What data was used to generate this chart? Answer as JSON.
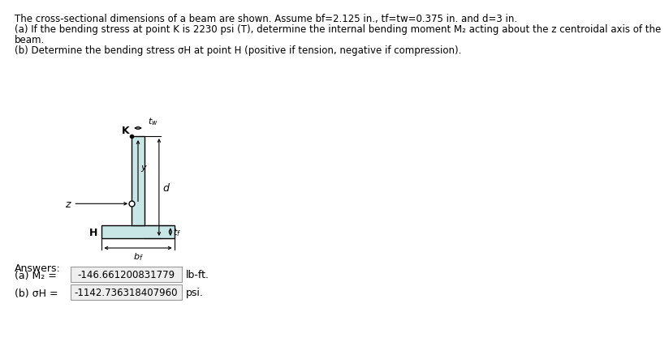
{
  "line1": "The cross-sectional dimensions of a beam are shown. Assume bf=2.125 in., tf=tw=0.375 in. and d=3 in.",
  "line2": "(a) If the bending stress at point K is 2230 psi (T), determine the internal bending moment M₂ acting about the z centroidal axis of the",
  "line3": "beam.",
  "line4": "(b) Determine the bending stress σH at point H (positive if tension, negative if compression).",
  "answers_label": "Answers:",
  "answer_a_label": "(a) M₂ =",
  "answer_a_value": "-146.661200831779",
  "answer_a_unit": "lb-ft.",
  "answer_b_label": "(b) σH =",
  "answer_b_value": "-1142.736318407960",
  "answer_b_unit": "psi.",
  "bg_color": "#ffffff",
  "beam_fill_color": "#c8e6e6",
  "beam_edge_color": "#000000",
  "bf": 2.125,
  "tf": 0.375,
  "tw": 0.375,
  "d": 3.0,
  "scale": 42
}
